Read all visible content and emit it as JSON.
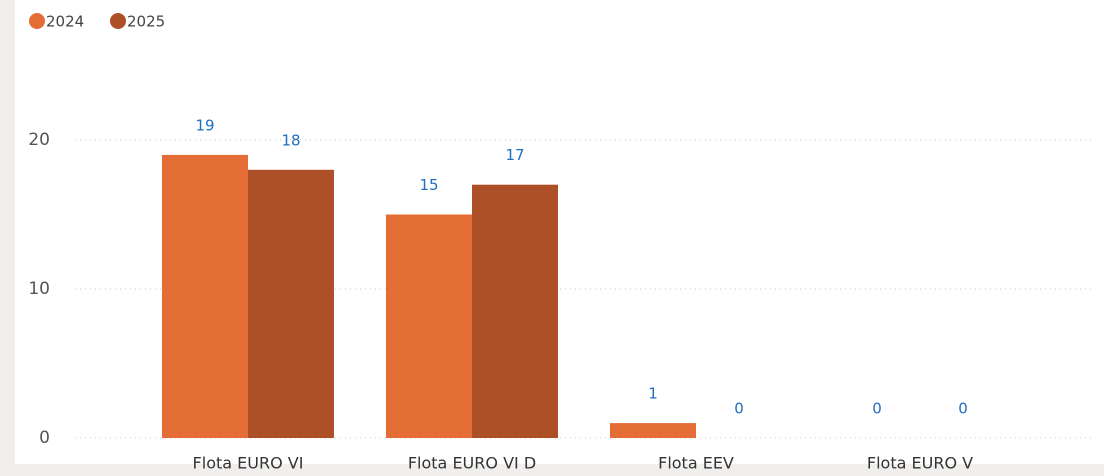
{
  "chart_data": {
    "type": "bar",
    "categories": [
      "Flota EURO VI",
      "Flota EURO VI D",
      "Flota EEV",
      "Flota EURO V"
    ],
    "series": [
      {
        "name": "2024",
        "color": "#e46c35",
        "values": [
          19,
          15,
          1,
          0
        ]
      },
      {
        "name": "2025",
        "color": "#ad5028",
        "values": [
          18,
          17,
          0,
          0
        ]
      }
    ],
    "ylim": [
      0,
      20
    ],
    "yticks": [
      0,
      10,
      20
    ],
    "grid": true,
    "legend": "top-left"
  }
}
